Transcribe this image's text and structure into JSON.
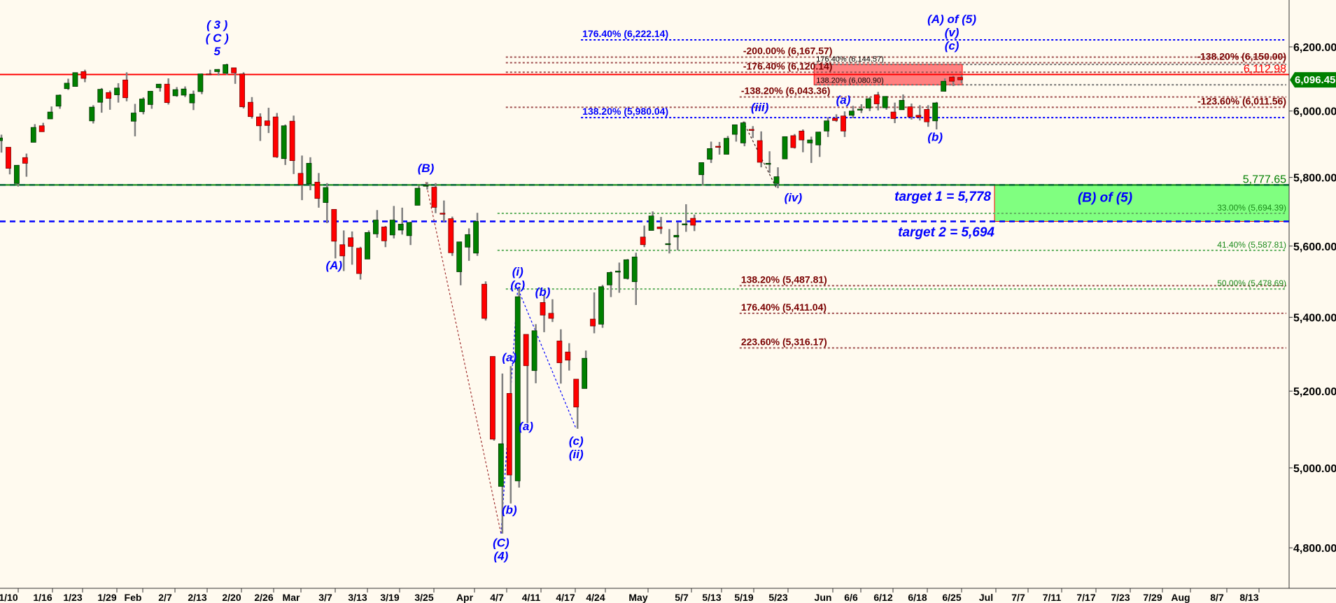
{
  "chart_data": {
    "type": "candlestick",
    "y_scale": "log",
    "ylim": [
      4700,
      6330
    ],
    "grid": false,
    "colors": {
      "background": "#fffaef",
      "up": "#008000",
      "down": "#ff0000",
      "wick": "#808080"
    },
    "y_ticks": [
      {
        "value": 6200,
        "label": "6,200.00"
      },
      {
        "value": 6000,
        "label": "6,000.00"
      },
      {
        "value": 5800,
        "label": "5,800.00"
      },
      {
        "value": 5600,
        "label": "5,600.00"
      },
      {
        "value": 5400,
        "label": "5,400.00"
      },
      {
        "value": 5200,
        "label": "5,200.00"
      },
      {
        "value": 5000,
        "label": "5,000.00"
      },
      {
        "value": 4800,
        "label": "4,800.00"
      }
    ],
    "x_ticks": [
      "1/10",
      "1/16",
      "1/23",
      "1/29",
      "Feb",
      "2/7",
      "2/13",
      "2/20",
      "2/26",
      "Mar",
      "3/7",
      "3/13",
      "3/19",
      "3/25",
      "Apr",
      "4/7",
      "4/11",
      "4/17",
      "4/24",
      "May",
      "5/7",
      "5/13",
      "5/19",
      "5/23",
      "Jun",
      "6/6",
      "6/12",
      "6/18",
      "6/25",
      "Jul",
      "7/7",
      "7/11",
      "7/17",
      "7/23",
      "7/29",
      "Aug",
      "8/7",
      "8/13"
    ],
    "dates": [
      "1/8",
      "1/10",
      "1/13",
      "1/14",
      "1/15",
      "1/16",
      "1/17",
      "1/21",
      "1/22",
      "1/23",
      "1/24",
      "1/27",
      "1/28",
      "1/29",
      "1/30",
      "1/31",
      "2/3",
      "2/4",
      "2/5",
      "2/6",
      "2/7",
      "2/10",
      "2/11",
      "2/12",
      "2/13",
      "2/14",
      "2/18",
      "2/19",
      "2/20",
      "2/21",
      "2/24",
      "2/25",
      "2/26",
      "2/27",
      "2/28",
      "3/3",
      "3/4",
      "3/5",
      "3/6",
      "3/7",
      "3/10",
      "3/11",
      "3/12",
      "3/13",
      "3/14",
      "3/17",
      "3/18",
      "3/19",
      "3/20",
      "3/21",
      "3/24",
      "3/25",
      "3/26",
      "3/27",
      "3/28",
      "3/31",
      "4/1",
      "4/2",
      "4/3",
      "4/4",
      "4/7",
      "4/8",
      "4/9",
      "4/10",
      "4/11",
      "4/14",
      "4/15",
      "4/16",
      "4/17",
      "4/21",
      "4/22",
      "4/23",
      "4/24",
      "4/25",
      "4/28",
      "4/29",
      "4/30",
      "5/1",
      "5/2",
      "5/5",
      "5/6",
      "5/7",
      "5/8",
      "5/9",
      "5/12",
      "5/13",
      "5/14",
      "5/15",
      "5/16",
      "5/19",
      "5/20",
      "5/21",
      "5/22",
      "5/23",
      "5/27",
      "5/28",
      "5/29",
      "5/30",
      "6/2",
      "6/3",
      "6/4",
      "6/5",
      "6/6",
      "6/9",
      "6/10",
      "6/11",
      "6/12",
      "6/13",
      "6/16",
      "6/17",
      "6/18",
      "6/20",
      "6/23",
      "6/24",
      "6/25",
      "6/26"
    ],
    "ohlc": [
      [
        5910,
        5928,
        5874,
        5918
      ],
      [
        5890,
        5890,
        5809,
        5827
      ],
      [
        5782,
        5837,
        5773,
        5836
      ],
      [
        5859,
        5871,
        5802,
        5842
      ],
      [
        5905,
        5960,
        5905,
        5950
      ],
      [
        5955,
        5964,
        5938,
        5937
      ],
      [
        5976,
        6014,
        5976,
        5997
      ],
      [
        6015,
        6051,
        6007,
        6049
      ],
      [
        6069,
        6100,
        6065,
        6086
      ],
      [
        6076,
        6119,
        6075,
        6119
      ],
      [
        6122,
        6128,
        6089,
        6101
      ],
      [
        5970,
        6018,
        5962,
        6012
      ],
      [
        6027,
        6071,
        5995,
        6067
      ],
      [
        6057,
        6063,
        6004,
        6039
      ],
      [
        6050,
        6086,
        6026,
        6071
      ],
      [
        6096,
        6120,
        6030,
        6041
      ],
      [
        5969,
        6022,
        5923,
        5994
      ],
      [
        5998,
        6042,
        5990,
        6037
      ],
      [
        6020,
        6062,
        6007,
        6061
      ],
      [
        6072,
        6084,
        6060,
        6083
      ],
      [
        6083,
        6101,
        6020,
        6026
      ],
      [
        6047,
        6074,
        6044,
        6066
      ],
      [
        6049,
        6076,
        6043,
        6068
      ],
      [
        6025,
        6063,
        6003,
        6052
      ],
      [
        6060,
        6116,
        6052,
        6115
      ],
      [
        6115,
        6128,
        6111,
        6114
      ],
      [
        6122,
        6130,
        6110,
        6129
      ],
      [
        6117,
        6147,
        6111,
        6144
      ],
      [
        6134,
        6134,
        6084,
        6118
      ],
      [
        6115,
        6120,
        6008,
        6013
      ],
      [
        6027,
        6043,
        5977,
        5983
      ],
      [
        5982,
        5993,
        5909,
        5955
      ],
      [
        5970,
        6010,
        5933,
        5956
      ],
      [
        5982,
        5994,
        5858,
        5861
      ],
      [
        5856,
        5959,
        5837,
        5955
      ],
      [
        5969,
        5986,
        5810,
        5850
      ],
      [
        5812,
        5865,
        5733,
        5778
      ],
      [
        5781,
        5860,
        5762,
        5842
      ],
      [
        5786,
        5813,
        5711,
        5738
      ],
      [
        5726,
        5783,
        5666,
        5770
      ],
      [
        5706,
        5706,
        5565,
        5614
      ],
      [
        5604,
        5645,
        5529,
        5572
      ],
      [
        5624,
        5642,
        5547,
        5599
      ],
      [
        5594,
        5598,
        5505,
        5522
      ],
      [
        5563,
        5645,
        5563,
        5639
      ],
      [
        5635,
        5704,
        5624,
        5675
      ],
      [
        5655,
        5658,
        5597,
        5615
      ],
      [
        5632,
        5716,
        5622,
        5675
      ],
      [
        5646,
        5711,
        5633,
        5663
      ],
      [
        5630,
        5670,
        5603,
        5668
      ],
      [
        5718,
        5775,
        5718,
        5768
      ],
      [
        5775,
        5786,
        5764,
        5777
      ],
      [
        5771,
        5783,
        5695,
        5712
      ],
      [
        5695,
        5732,
        5670,
        5693
      ],
      [
        5679,
        5685,
        5572,
        5581
      ],
      [
        5527,
        5613,
        5489,
        5612
      ],
      [
        5597,
        5651,
        5558,
        5633
      ],
      [
        5580,
        5696,
        5572,
        5671
      ],
      [
        5492,
        5500,
        5391,
        5397
      ],
      [
        5293,
        5293,
        5070,
        5074
      ],
      [
        4953,
        5247,
        4835,
        5062
      ],
      [
        5194,
        5267,
        4910,
        4982
      ],
      [
        4967,
        5481,
        4950,
        5457
      ],
      [
        5353,
        5353,
        5116,
        5268
      ],
      [
        5255,
        5381,
        5221,
        5363
      ],
      [
        5441,
        5460,
        5359,
        5406
      ],
      [
        5411,
        5450,
        5387,
        5397
      ],
      [
        5335,
        5367,
        5220,
        5276
      ],
      [
        5305,
        5329,
        5255,
        5283
      ],
      [
        5232,
        5232,
        5101,
        5158
      ],
      [
        5207,
        5309,
        5207,
        5288
      ],
      [
        5395,
        5469,
        5356,
        5376
      ],
      [
        5381,
        5490,
        5371,
        5485
      ],
      [
        5490,
        5528,
        5456,
        5525
      ],
      [
        5529,
        5553,
        5468,
        5529
      ],
      [
        5508,
        5563,
        5505,
        5561
      ],
      [
        5499,
        5581,
        5434,
        5569
      ],
      [
        5626,
        5659,
        5597,
        5604
      ],
      [
        5645,
        5700,
        5645,
        5687
      ],
      [
        5655,
        5684,
        5635,
        5650
      ],
      [
        5605,
        5649,
        5579,
        5607
      ],
      [
        5626,
        5668,
        5588,
        5631
      ],
      [
        5663,
        5721,
        5641,
        5664
      ],
      [
        5680,
        5691,
        5643,
        5660
      ],
      [
        5808,
        5845,
        5776,
        5844
      ],
      [
        5854,
        5907,
        5843,
        5886
      ],
      [
        5893,
        5906,
        5868,
        5892
      ],
      [
        5869,
        5924,
        5868,
        5917
      ],
      [
        5929,
        5959,
        5907,
        5958
      ],
      [
        5903,
        5968,
        5893,
        5964
      ],
      [
        5944,
        5954,
        5918,
        5941
      ],
      [
        5910,
        5938,
        5830,
        5845
      ],
      [
        5841,
        5878,
        5813,
        5842
      ],
      [
        5782,
        5830,
        5768,
        5802
      ],
      [
        5855,
        5922,
        5855,
        5922
      ],
      [
        5925,
        5930,
        5886,
        5889
      ],
      [
        5939,
        5944,
        5875,
        5912
      ],
      [
        5903,
        5922,
        5843,
        5912
      ],
      [
        5897,
        5937,
        5861,
        5936
      ],
      [
        5939,
        5981,
        5921,
        5970
      ],
      [
        5978,
        5990,
        5967,
        5971
      ],
      [
        5985,
        5999,
        5921,
        5939
      ],
      [
        5987,
        6016,
        5978,
        6000
      ],
      [
        6004,
        6021,
        5994,
        6006
      ],
      [
        6009,
        6043,
        6000,
        6038
      ],
      [
        6050,
        6059,
        6002,
        6022
      ],
      [
        6010,
        6046,
        6004,
        6045
      ],
      [
        5997,
        6026,
        5963,
        5977
      ],
      [
        6004,
        6051,
        6004,
        6033
      ],
      [
        6013,
        6023,
        5974,
        5982
      ],
      [
        5987,
        6018,
        5971,
        5981
      ],
      [
        6005,
        6018,
        5952,
        5967
      ],
      [
        5970,
        6028,
        5944,
        6025
      ],
      [
        6061,
        6101,
        6060,
        6092
      ],
      [
        6105,
        6109,
        6077,
        6092
      ],
      [
        6104,
        6112,
        6086,
        6096.45
      ]
    ],
    "last_price": {
      "value": 6096.45,
      "label": "6,096.45",
      "color": "#008000"
    },
    "solid_levels": [
      {
        "price": 6112.98,
        "label": "6,112.98",
        "color": "#ff0000"
      },
      {
        "price": 5777.65,
        "label": "5,777.65",
        "color": "#008000"
      }
    ],
    "dashed_levels": [
      {
        "price": 5777.65,
        "color": "#0000ff"
      },
      {
        "price": 5671,
        "color": "#0000ff"
      }
    ],
    "fib_levels": [
      {
        "price": 6222.14,
        "label": "176.40% (6,222.14)",
        "color": "#0000ff",
        "style": "blue",
        "from": "4/22",
        "label_at": "start"
      },
      {
        "price": 6167.57,
        "label": "-200.00% (6,167.57)",
        "color": "#a05050",
        "style": "brown",
        "from": "4/8",
        "label_at": "5/19"
      },
      {
        "price": 6150.0,
        "label": "-138.20% (6,150.00)",
        "color": "#a05050",
        "style": "brown",
        "from": "4/8",
        "label_at": "right"
      },
      {
        "price": 6144.57,
        "label": "176.40% (6,144.57)",
        "color": "#707070",
        "style": "black",
        "from": "6/2",
        "label_at": "start"
      },
      {
        "price": 6120.14,
        "label": "-176.40% (6,120.14)",
        "color": "#a05050",
        "style": "brown",
        "from": "4/8",
        "label_at": "5/19"
      },
      {
        "price": 6080.9,
        "label": "138.20% (6,080.90)",
        "color": "#707070",
        "style": "black",
        "from": "6/2",
        "label_at": "start"
      },
      {
        "price": 6043.36,
        "label": "-138.20% (6,043.36)",
        "color": "#a05050",
        "style": "brown",
        "from": "5/19",
        "label_at": "start"
      },
      {
        "price": 6011.56,
        "label": "-123.60% (6,011.56)",
        "color": "#a05050",
        "style": "brown",
        "from": "4/8",
        "label_at": "right"
      },
      {
        "price": 5980.04,
        "label": "138.20% (5,980.04)",
        "color": "#0000ff",
        "style": "blue",
        "from": "4/22",
        "label_at": "start"
      },
      {
        "price": 5694.39,
        "label": "33.00% (5,694.39)",
        "color": "#60b060",
        "style": "green",
        "from": "4/7",
        "label_at": "right"
      },
      {
        "price": 5587.81,
        "label": "41.40% (5,587.81)",
        "color": "#60b060",
        "style": "green",
        "from": "4/7",
        "label_at": "right"
      },
      {
        "price": 5478.69,
        "label": "50.00% (5,478.69)",
        "color": "#60b060",
        "style": "green",
        "from": "4/8",
        "label_at": "right"
      },
      {
        "price": 5487.81,
        "label": "138.20% (5,487.81)",
        "color": "#a05050",
        "style": "brown",
        "from": "5/19",
        "label_at": "start"
      },
      {
        "price": 5411.04,
        "label": "176.40% (5,411.04)",
        "color": "#a05050",
        "style": "brown",
        "from": "5/19",
        "label_at": "start"
      },
      {
        "price": 5316.17,
        "label": "223.60% (5,316.17)",
        "color": "#a05050",
        "style": "brown",
        "from": "5/19",
        "label_at": "start"
      }
    ],
    "zones": [
      {
        "name": "resistance-zone",
        "from": "6/2",
        "to": "6/26",
        "top": 6144.57,
        "bottom": 6080.9,
        "fill": "#ff8080",
        "stroke": "#ff0000"
      },
      {
        "name": "target-zone",
        "top": 5777.65,
        "bottom": 5671,
        "fill": "#80ff80",
        "stroke": "#ff0000",
        "label": "(B) of (5)"
      }
    ],
    "targets": [
      "target 1 = 5,778",
      "target 2 = 5,694"
    ],
    "wave_labels": [
      {
        "lines": [
          "( 3 )",
          "( C )",
          "5"
        ],
        "date": "2/18",
        "price": 6271
      },
      {
        "lines": [
          "(B)"
        ],
        "date": "3/25",
        "price": 5828
      },
      {
        "lines": [
          "(A)"
        ],
        "date": "3/10",
        "price": 5546
      },
      {
        "lines": [
          "(C)",
          "(4)"
        ],
        "date": "4/7",
        "price": 4813
      },
      {
        "lines": [
          "(a)"
        ],
        "date": "4/8",
        "price": 5291
      },
      {
        "lines": [
          "(b)"
        ],
        "date": "4/8",
        "price": 4895
      },
      {
        "lines": [
          "(a)"
        ],
        "date": "4/10",
        "price": 5108
      },
      {
        "lines": [
          "(i)",
          "(c)"
        ],
        "date": "4/9",
        "price": 5528
      },
      {
        "lines": [
          "(b)"
        ],
        "date": "4/14",
        "price": 5471
      },
      {
        "lines": [
          "(c)",
          "(ii)"
        ],
        "date": "4/21",
        "price": 5070
      },
      {
        "lines": [
          "(iii)"
        ],
        "date": "5/21",
        "price": 6012
      },
      {
        "lines": [
          "(iv)"
        ],
        "date": "5/28",
        "price": 5741
      },
      {
        "lines": [
          "(a)"
        ],
        "date": "6/5",
        "price": 6035
      },
      {
        "lines": [
          "(b)"
        ],
        "date": "6/23",
        "price": 5922
      },
      {
        "lines": [
          "(A) of (5)",
          "(v)",
          "(c)"
        ],
        "date": "6/25",
        "price": 6289
      }
    ],
    "wave_lines": [
      {
        "points": [
          [
            "3/25",
            5786
          ],
          [
            "4/7",
            4835
          ]
        ],
        "color": "#a03030"
      },
      {
        "points": [
          [
            "4/7",
            4835
          ],
          [
            "4/9",
            5481
          ],
          [
            "4/21",
            5101
          ]
        ],
        "color": "#0000ff"
      },
      {
        "points": [
          [
            "5/19",
            5968
          ],
          [
            "5/23",
            5768
          ]
        ],
        "color": "#402020"
      }
    ]
  }
}
